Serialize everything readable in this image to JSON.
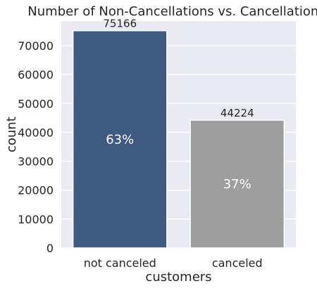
{
  "chart_data": {
    "type": "bar",
    "title": "Number of Non-Cancellations vs. Cancellations",
    "xlabel": "customers",
    "ylabel": "count",
    "categories": [
      "not canceled",
      "canceled"
    ],
    "values": [
      75166,
      44224
    ],
    "value_labels": [
      "75166",
      "44224"
    ],
    "percent_labels": [
      "63%",
      "37%"
    ],
    "colors": [
      "#3e5a80",
      "#9e9e9e"
    ],
    "ylim": [
      0,
      78500
    ],
    "yticks": [
      0,
      10000,
      20000,
      30000,
      40000,
      50000,
      60000,
      70000
    ],
    "grid": true,
    "background": "#eaeaf2"
  }
}
